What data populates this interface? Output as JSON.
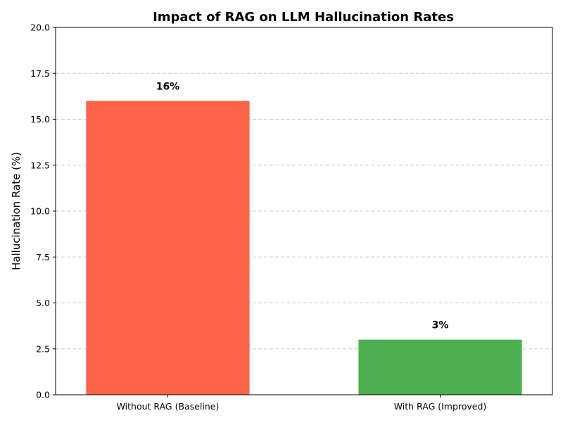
{
  "chart_data": {
    "type": "bar",
    "title": "Impact of RAG on LLM Hallucination Rates",
    "xlabel": "",
    "ylabel": "Hallucination Rate (%)",
    "categories": [
      "Without RAG (Baseline)",
      "With RAG (Improved)"
    ],
    "values": [
      16,
      3
    ],
    "data_labels": [
      "16%",
      "3%"
    ],
    "bar_colors": [
      "#ff6347",
      "#4caf50"
    ],
    "ylim": [
      0,
      20
    ],
    "yticks": [
      0,
      2.5,
      5,
      7.5,
      10,
      12.5,
      15,
      17.5,
      20
    ],
    "ytick_labels": [
      "0.0",
      "2.5",
      "5.0",
      "7.5",
      "10.0",
      "12.5",
      "15.0",
      "17.5",
      "20.0"
    ],
    "grid": "y-dashed",
    "legend": "none"
  }
}
